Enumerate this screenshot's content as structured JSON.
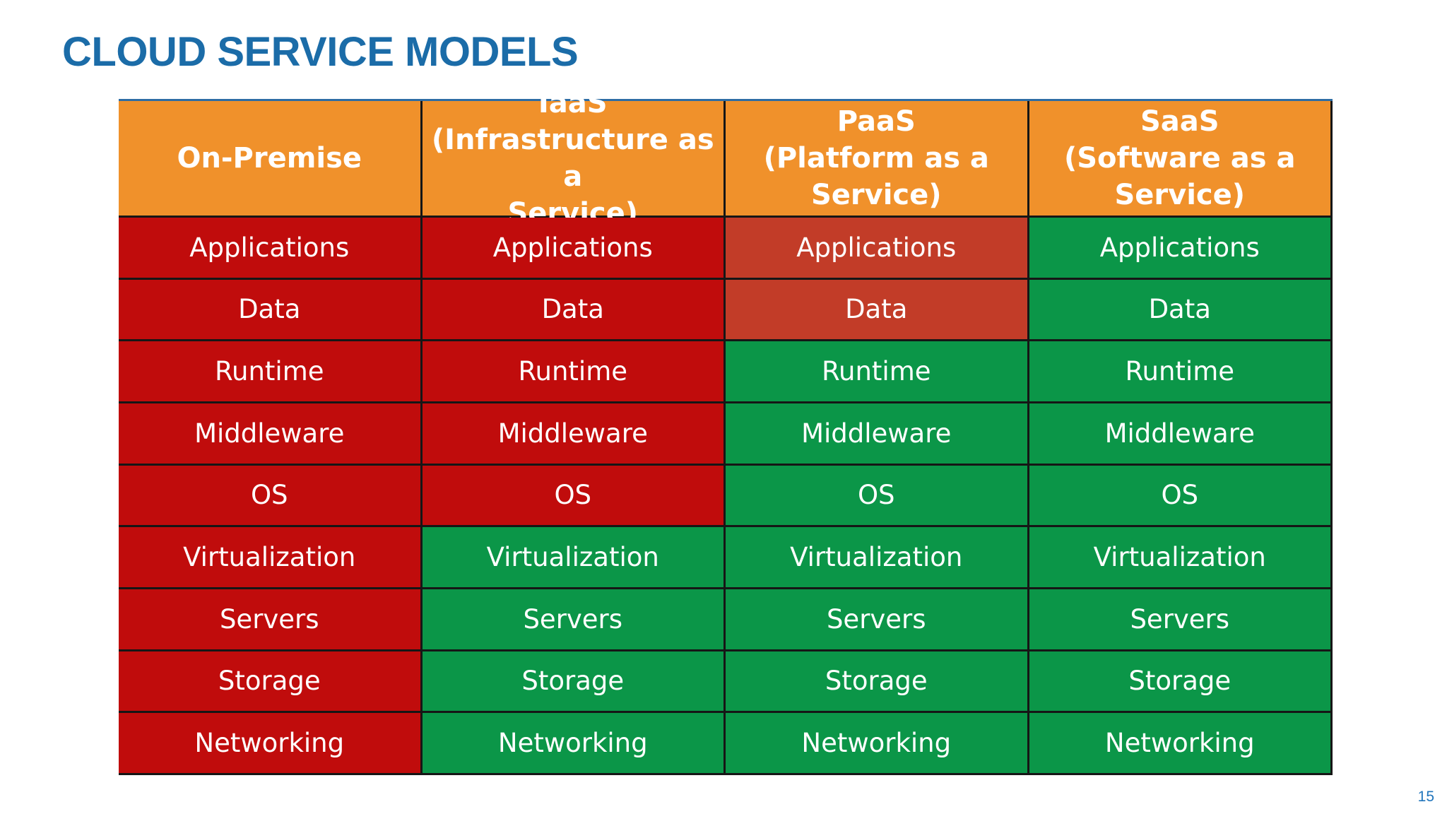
{
  "page": {
    "title": "CLOUD SERVICE MODELS",
    "page_number": "15"
  },
  "colors": {
    "title_blue": "#1B6CA8",
    "header_orange": "#F0912B",
    "self_managed_red": "#C00C0C",
    "partial_managed_brick": "#C23C28",
    "provider_managed_green": "#0B9648",
    "table_top_rule_blue": "#2E6DA4",
    "grid_line": "#161616",
    "cell_text": "#FFFFFF",
    "page_number_blue": "#2175BC"
  },
  "table": {
    "row_labels": [
      "Applications",
      "Data",
      "Runtime",
      "Middleware",
      "OS",
      "Virtualization",
      "Servers",
      "Storage",
      "Networking"
    ],
    "columns": [
      {
        "header": "On-Premise",
        "cells": [
          {
            "label": "Applications",
            "bg": "#C00C0C"
          },
          {
            "label": "Data",
            "bg": "#C00C0C"
          },
          {
            "label": "Runtime",
            "bg": "#C00C0C"
          },
          {
            "label": "Middleware",
            "bg": "#C00C0C"
          },
          {
            "label": "OS",
            "bg": "#C00C0C"
          },
          {
            "label": "Virtualization",
            "bg": "#C00C0C"
          },
          {
            "label": "Servers",
            "bg": "#C00C0C"
          },
          {
            "label": "Storage",
            "bg": "#C00C0C"
          },
          {
            "label": "Networking",
            "bg": "#C00C0C"
          }
        ]
      },
      {
        "header": "IaaS\n(Infrastructure as a\nService)",
        "cells": [
          {
            "label": "Applications",
            "bg": "#C00C0C"
          },
          {
            "label": "Data",
            "bg": "#C00C0C"
          },
          {
            "label": "Runtime",
            "bg": "#C00C0C"
          },
          {
            "label": "Middleware",
            "bg": "#C00C0C"
          },
          {
            "label": "OS",
            "bg": "#C00C0C"
          },
          {
            "label": "Virtualization",
            "bg": "#0B9648"
          },
          {
            "label": "Servers",
            "bg": "#0B9648"
          },
          {
            "label": "Storage",
            "bg": "#0B9648"
          },
          {
            "label": "Networking",
            "bg": "#0B9648"
          }
        ]
      },
      {
        "header": "PaaS\n(Platform as a\nService)",
        "cells": [
          {
            "label": "Applications",
            "bg": "#C23C28"
          },
          {
            "label": "Data",
            "bg": "#C23C28"
          },
          {
            "label": "Runtime",
            "bg": "#0B9648"
          },
          {
            "label": "Middleware",
            "bg": "#0B9648"
          },
          {
            "label": "OS",
            "bg": "#0B9648"
          },
          {
            "label": "Virtualization",
            "bg": "#0B9648"
          },
          {
            "label": "Servers",
            "bg": "#0B9648"
          },
          {
            "label": "Storage",
            "bg": "#0B9648"
          },
          {
            "label": "Networking",
            "bg": "#0B9648"
          }
        ]
      },
      {
        "header": "SaaS\n(Software as a\nService)",
        "cells": [
          {
            "label": "Applications",
            "bg": "#0B9648"
          },
          {
            "label": "Data",
            "bg": "#0B9648"
          },
          {
            "label": "Runtime",
            "bg": "#0B9648"
          },
          {
            "label": "Middleware",
            "bg": "#0B9648"
          },
          {
            "label": "OS",
            "bg": "#0B9648"
          },
          {
            "label": "Virtualization",
            "bg": "#0B9648"
          },
          {
            "label": "Servers",
            "bg": "#0B9648"
          },
          {
            "label": "Storage",
            "bg": "#0B9648"
          },
          {
            "label": "Networking",
            "bg": "#0B9648"
          }
        ]
      }
    ]
  }
}
